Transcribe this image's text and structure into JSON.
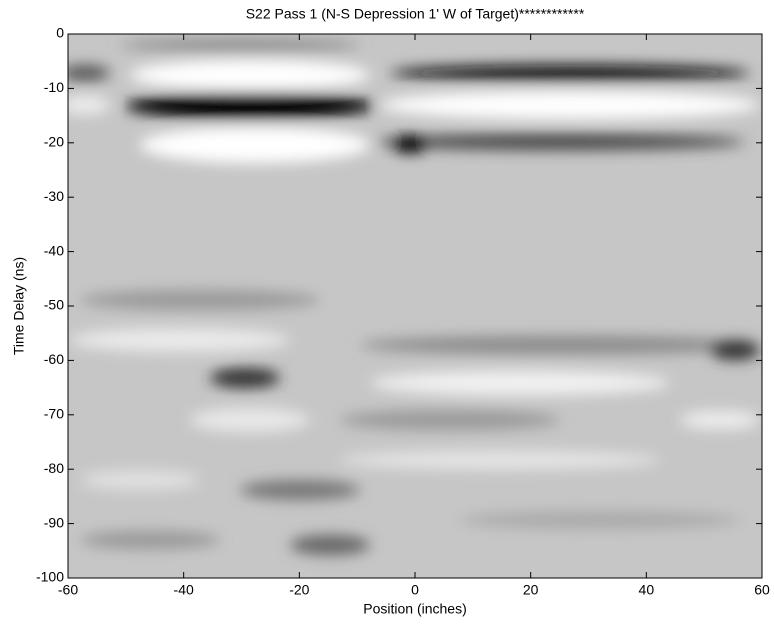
{
  "chart_data": {
    "type": "image",
    "title": "S22 Pass 1 (N-S Depression 1' W of Target)************",
    "x_label": "Position (inches)",
    "y_label": "Time Delay (ns)",
    "xlim": [
      -60,
      60
    ],
    "xticks": [
      -60,
      -40,
      -20,
      0,
      20,
      40,
      60
    ],
    "ylim": [
      -100,
      0
    ],
    "yticks": [
      0,
      -10,
      -20,
      -30,
      -40,
      -50,
      -60,
      -70,
      -80,
      -90,
      -100
    ],
    "colormap": "gray"
  }
}
